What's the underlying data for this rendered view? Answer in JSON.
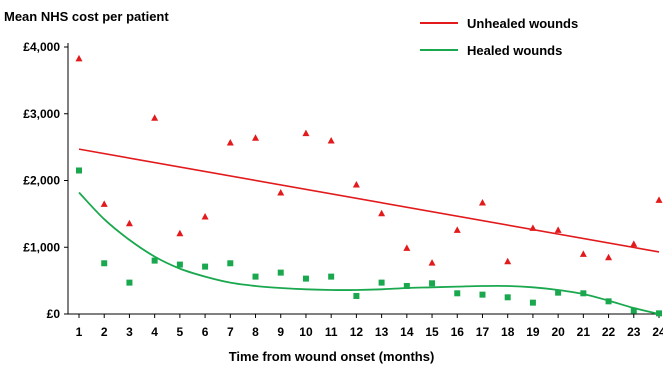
{
  "chart_data": {
    "type": "scatter",
    "ylabel": "Mean NHS cost per patient",
    "xlabel": "Time from wound onset (months)",
    "x": [
      1,
      2,
      3,
      4,
      5,
      6,
      7,
      8,
      9,
      10,
      11,
      12,
      13,
      14,
      15,
      16,
      17,
      18,
      19,
      20,
      21,
      22,
      23,
      24
    ],
    "x_tick_labels": [
      "1",
      "2",
      "3",
      "4",
      "5",
      "6",
      "7",
      "8",
      "9",
      "10",
      "11",
      "12",
      "13",
      "14",
      "15",
      "16",
      "17",
      "18",
      "19",
      "20",
      "21",
      "22",
      "23",
      "24"
    ],
    "ylim": [
      0,
      4000
    ],
    "y_ticks": [
      0,
      1000,
      2000,
      3000,
      4000
    ],
    "y_tick_labels": [
      "£0",
      "£1,000",
      "£2,000",
      "£3,000",
      "£4,000"
    ],
    "grid": false,
    "legend_position": "top-right",
    "series": [
      {
        "name": "Unhealed wounds",
        "color": "#e31a1c",
        "marker": "triangle",
        "values": [
          3830,
          1650,
          1360,
          2940,
          1210,
          1460,
          2570,
          2640,
          1820,
          2710,
          2600,
          1940,
          1510,
          990,
          770,
          1260,
          1670,
          790,
          1290,
          1260,
          900,
          850,
          1050,
          1710
        ],
        "trend": {
          "type": "linear",
          "start": [
            1,
            2470
          ],
          "end": [
            24,
            930
          ]
        }
      },
      {
        "name": "Healed wounds",
        "color": "#1aa84e",
        "marker": "square",
        "values": [
          2150,
          760,
          470,
          800,
          740,
          710,
          760,
          560,
          620,
          530,
          560,
          270,
          470,
          420,
          460,
          310,
          290,
          250,
          170,
          320,
          310,
          190,
          50,
          10
        ],
        "trend": {
          "type": "polynomial",
          "points": [
            [
              1,
              1820
            ],
            [
              2,
              1420
            ],
            [
              3,
              1110
            ],
            [
              4,
              860
            ],
            [
              5,
              680
            ],
            [
              6,
              560
            ],
            [
              7,
              470
            ],
            [
              8,
              420
            ],
            [
              9,
              390
            ],
            [
              10,
              370
            ],
            [
              11,
              360
            ],
            [
              12,
              360
            ],
            [
              13,
              370
            ],
            [
              14,
              390
            ],
            [
              15,
              400
            ],
            [
              16,
              410
            ],
            [
              17,
              420
            ],
            [
              18,
              420
            ],
            [
              19,
              400
            ],
            [
              20,
              360
            ],
            [
              21,
              300
            ],
            [
              22,
              200
            ],
            [
              23,
              90
            ],
            [
              24,
              0
            ]
          ]
        }
      }
    ]
  }
}
